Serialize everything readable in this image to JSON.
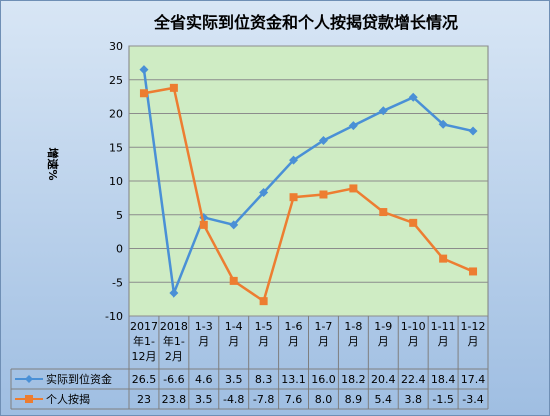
{
  "chart_data": {
    "type": "line",
    "title": "全省实际到位资金和个人按揭贷款增长情况",
    "ylabel": "增速%",
    "xlabel": "",
    "ylim": [
      -10,
      30
    ],
    "yticks": [
      "30",
      "25",
      "20",
      "15",
      "10",
      "5",
      "0",
      "-5",
      "-10"
    ],
    "grid": true,
    "legend": "data-table-left",
    "categories": [
      "2017年1-12月",
      "2018年1-2月",
      "1-3月",
      "1-4月",
      "1-5月",
      "1-6月",
      "1-7月",
      "1-8月",
      "1-9月",
      "1-10月",
      "1-11月",
      "1-12月"
    ],
    "category_label_lines": [
      [
        "2017",
        "年1-",
        "12月"
      ],
      [
        "2018",
        "年1-",
        "2月"
      ],
      [
        "1-3",
        "月"
      ],
      [
        "1-4",
        "月"
      ],
      [
        "1-5",
        "月"
      ],
      [
        "1-6",
        "月"
      ],
      [
        "1-7",
        "月"
      ],
      [
        "1-8",
        "月"
      ],
      [
        "1-9",
        "月"
      ],
      [
        "1-10",
        "月"
      ],
      [
        "1-11",
        "月"
      ],
      [
        "1-12",
        "月"
      ]
    ],
    "series": [
      {
        "name": "实际到位资金",
        "color": "#4a90d6",
        "marker": "diamond",
        "values": [
          26.5,
          -6.6,
          4.6,
          3.5,
          8.3,
          13.1,
          16.0,
          18.2,
          20.4,
          22.4,
          18.4,
          17.4
        ],
        "labels": [
          "26.5",
          "-6.6",
          "4.6",
          "3.5",
          "8.3",
          "13.1",
          "16.0",
          "18.2",
          "20.4",
          "22.4",
          "18.4",
          "17.4"
        ]
      },
      {
        "name": "个人按揭",
        "color": "#ed7d31",
        "marker": "square",
        "values": [
          23,
          23.8,
          3.5,
          -4.8,
          -7.8,
          7.6,
          8.0,
          8.9,
          5.4,
          3.8,
          -1.5,
          -3.4
        ],
        "labels": [
          "23",
          "23.8",
          "3.5",
          "-4.8",
          "-7.8",
          "7.6",
          "8.0",
          "8.9",
          "5.4",
          "3.8",
          "-1.5",
          "-3.4"
        ]
      }
    ]
  }
}
